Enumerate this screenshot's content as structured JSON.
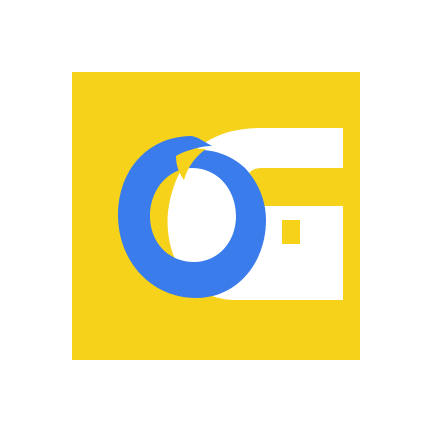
{
  "app_icon": {
    "icon_name": "og-logo-icon",
    "colors": {
      "background": "#F6D21A",
      "ring": "#3A7CEC",
      "g_shape": "#FFFFFF"
    }
  }
}
